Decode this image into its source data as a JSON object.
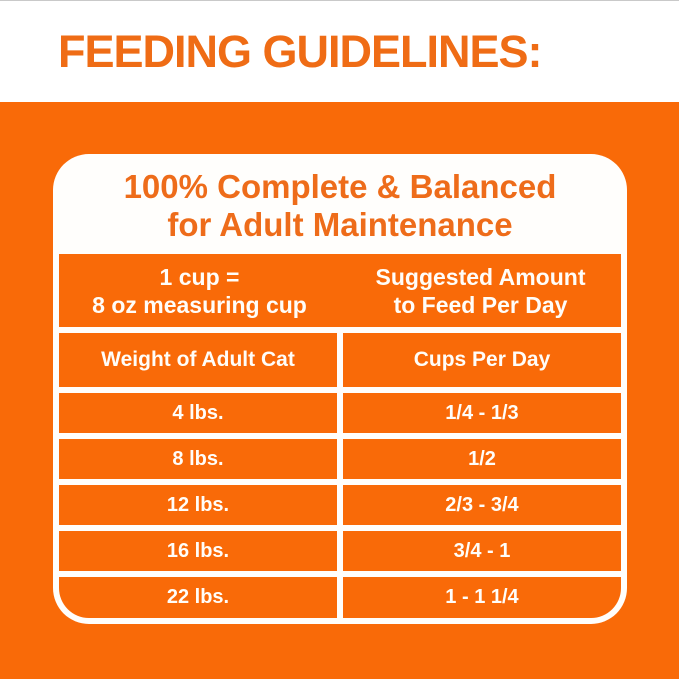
{
  "page_title": "FEEDING GUIDELINES:",
  "card": {
    "heading_line1": "100% Complete & Balanced",
    "heading_line2": "for Adult Maintenance",
    "info_band": {
      "left_line1": "1 cup =",
      "left_line2": "8 oz measuring cup",
      "right_line1": "Suggested Amount",
      "right_line2": "to Feed Per Day"
    },
    "table": {
      "columns": [
        "Weight of Adult Cat",
        "Cups Per Day"
      ],
      "rows": [
        {
          "weight": "4 lbs.",
          "cups": "1/4 - 1/3"
        },
        {
          "weight": "8 lbs.",
          "cups": "1/2"
        },
        {
          "weight": "12 lbs.",
          "cups": "2/3 - 3/4"
        },
        {
          "weight": "16 lbs.",
          "cups": "3/4 - 1"
        },
        {
          "weight": "22 lbs.",
          "cups": "1 - 1 1/4"
        }
      ]
    }
  },
  "colors": {
    "background_orange": "#f96a08",
    "heading_text_orange": "#ee6c1a",
    "grid_white": "#fffefc"
  }
}
